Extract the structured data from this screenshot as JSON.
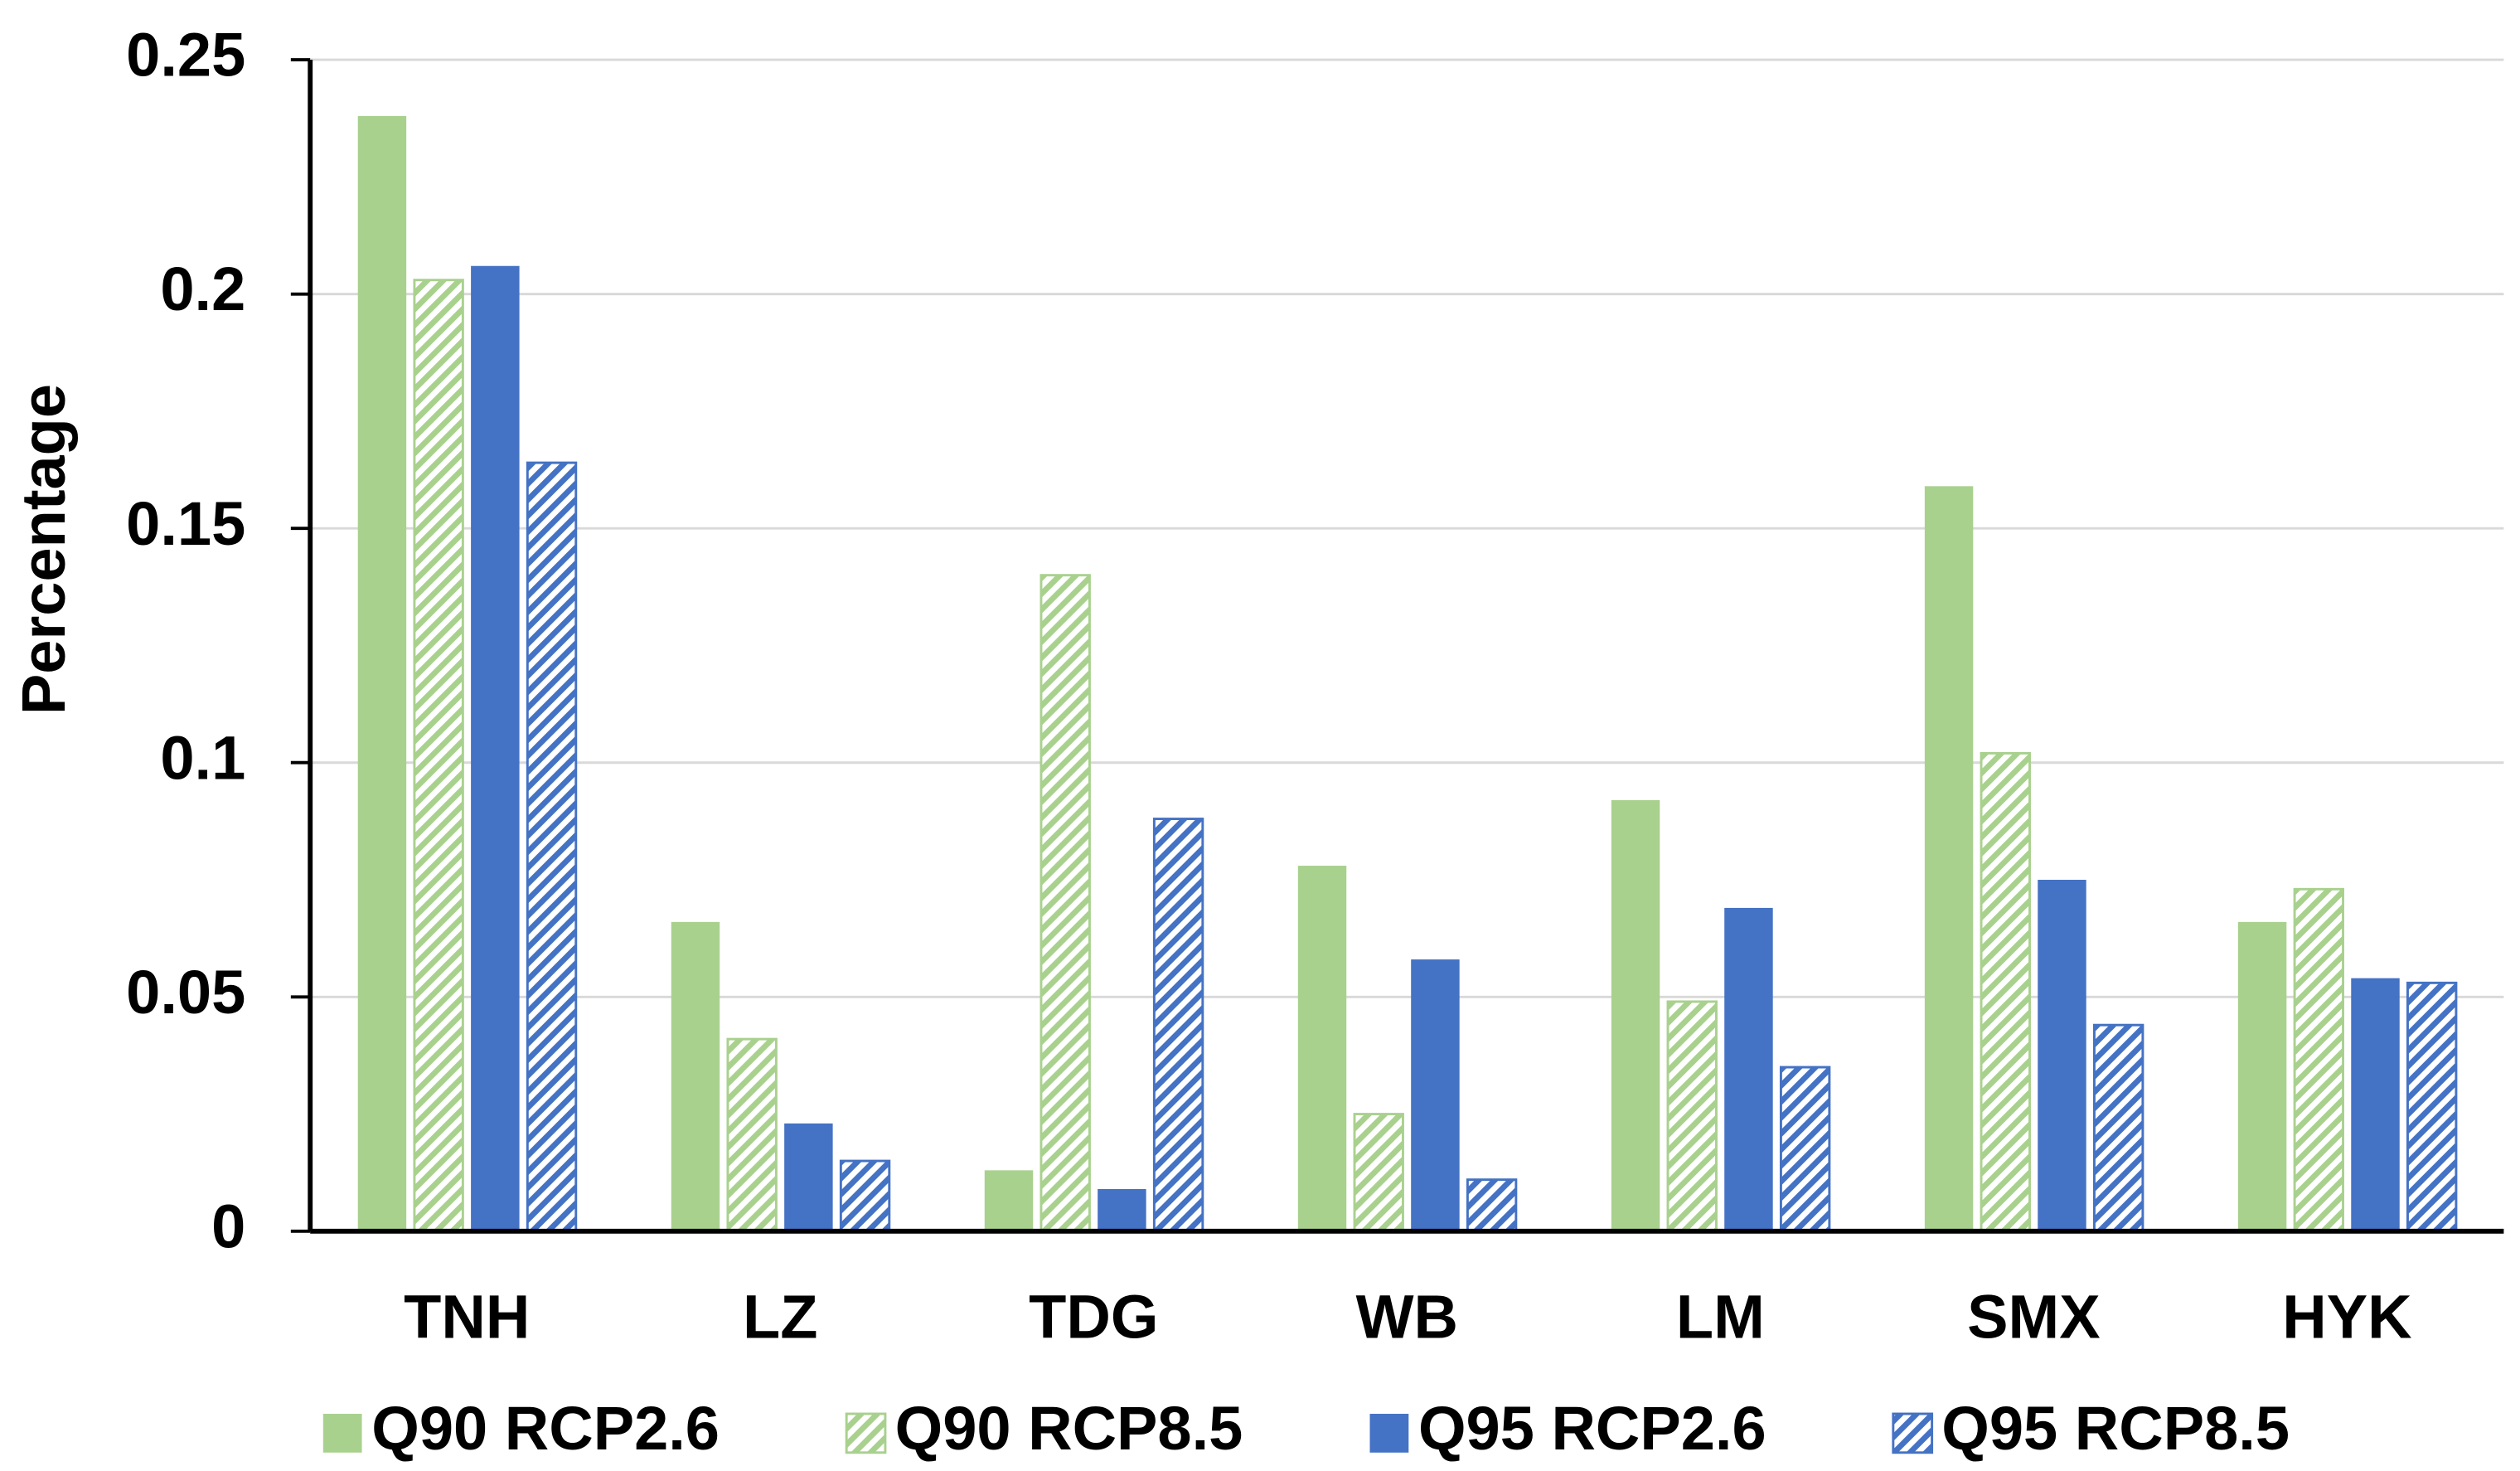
{
  "chart_data": {
    "type": "bar",
    "y_label": "Percentage",
    "categories": [
      "TNH",
      "LZ",
      "TDG",
      "WB",
      "LM",
      "SMX",
      "HYK"
    ],
    "series": [
      {
        "name": "Q90 RCP2.6",
        "color": "#a9d18e",
        "pattern": "solid",
        "values": [
          0.238,
          0.066,
          0.013,
          0.078,
          0.092,
          0.159,
          0.066
        ]
      },
      {
        "name": "Q90 RCP8.5",
        "color": "#a9d18e",
        "pattern": "hatch",
        "values": [
          0.203,
          0.041,
          0.14,
          0.025,
          0.049,
          0.102,
          0.073
        ]
      },
      {
        "name": "Q95 RCP2.6",
        "color": "#4472c4",
        "pattern": "solid",
        "values": [
          0.206,
          0.023,
          0.009,
          0.058,
          0.069,
          0.075,
          0.054
        ]
      },
      {
        "name": "Q95 RCP8.5",
        "color": "#4472c4",
        "pattern": "hatch",
        "values": [
          0.164,
          0.015,
          0.088,
          0.011,
          0.035,
          0.044,
          0.053
        ]
      }
    ],
    "ylim": [
      0,
      0.25
    ],
    "yticks": [
      0,
      0.05,
      0.1,
      0.15,
      0.2,
      0.25
    ],
    "grid": true,
    "legend": "bottom"
  }
}
